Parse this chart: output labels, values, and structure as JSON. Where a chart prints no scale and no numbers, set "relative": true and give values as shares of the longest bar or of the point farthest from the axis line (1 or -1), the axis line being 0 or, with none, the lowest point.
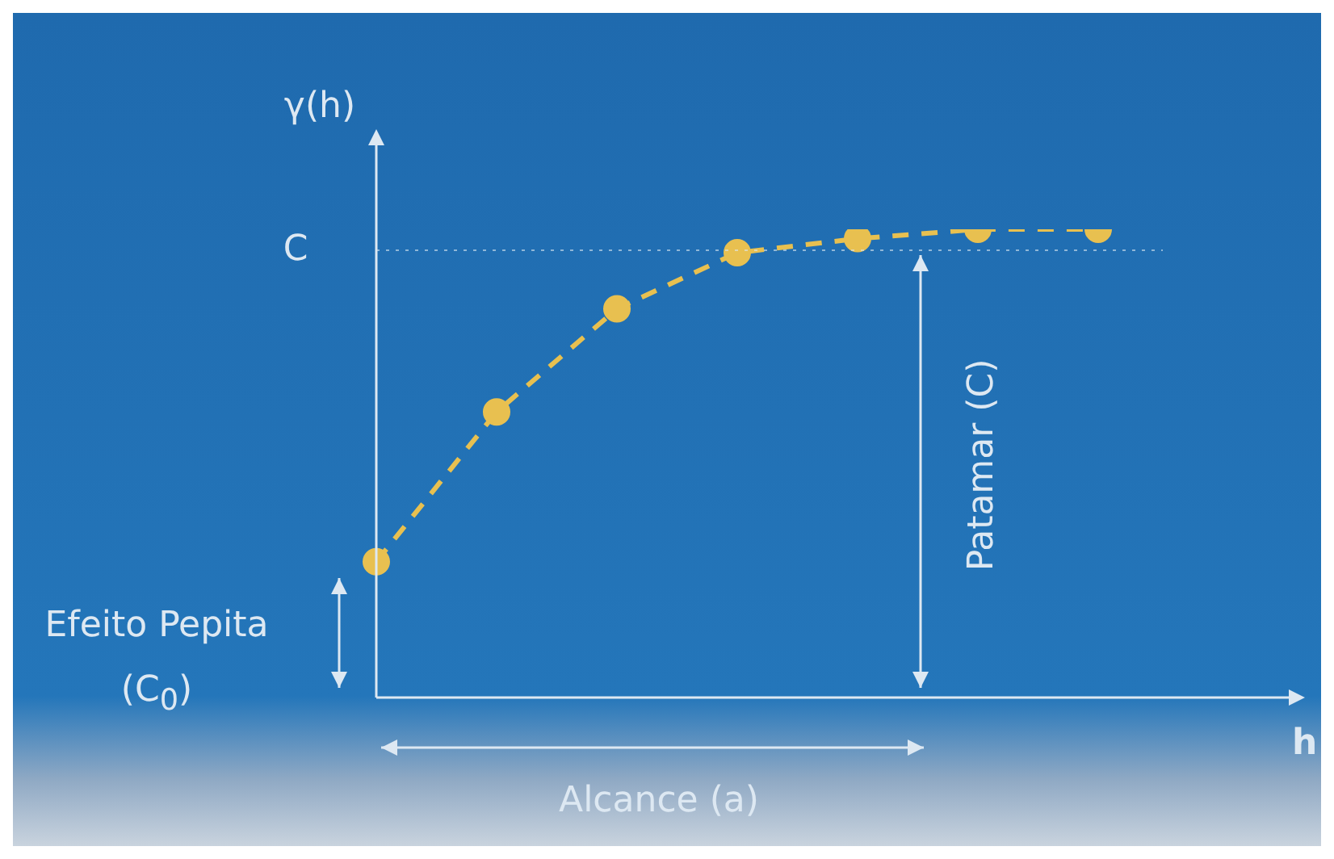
{
  "chart_data": {
    "type": "line",
    "relative": true,
    "xlabel": "h",
    "ylabel": "γ(h)",
    "categories": [
      null,
      null,
      null,
      null,
      null,
      null,
      null
    ],
    "series": [
      {
        "color": "#e8c050",
        "line_style": "dashed",
        "marker": "circle",
        "values": [
          0.29,
          0.61,
          0.83,
          0.95,
          0.98,
          1.0,
          1.0
        ]
      }
    ],
    "ref_lines": [
      {
        "axis": "y",
        "value": 0.955,
        "label": "C",
        "line_style": "dotted"
      }
    ],
    "annotations": [
      "Efeito Pepita (C$_{0}$)",
      "Patamar (C)",
      "Alcance (a)"
    ],
    "legend": false
  }
}
